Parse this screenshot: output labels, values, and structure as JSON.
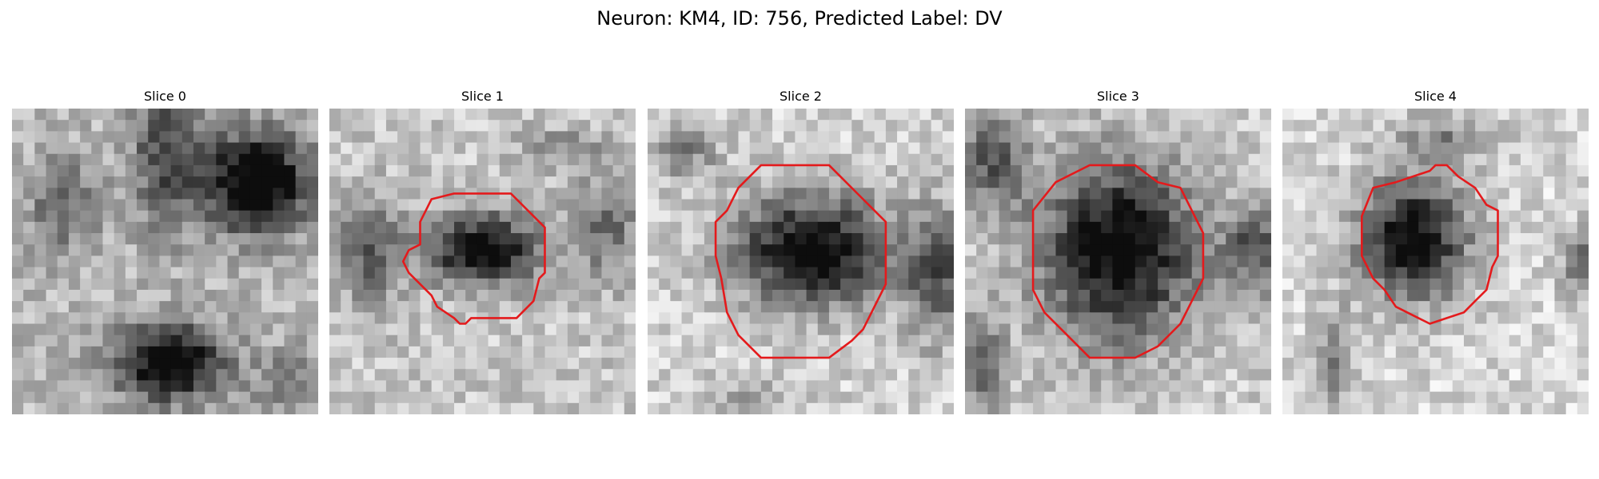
{
  "figure": {
    "title": "Neuron: KM4, ID: 756, Predicted Label: DV",
    "outline_color": "#e41a1c"
  },
  "panels": [
    {
      "title": "Slice 0",
      "has_outline": false
    },
    {
      "title": "Slice 1",
      "has_outline": true
    },
    {
      "title": "Slice 2",
      "has_outline": true
    },
    {
      "title": "Slice 3",
      "has_outline": true
    },
    {
      "title": "Slice 4",
      "has_outline": true
    }
  ]
}
